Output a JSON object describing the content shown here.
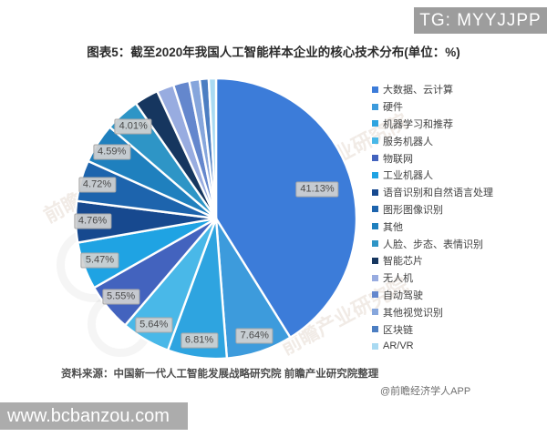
{
  "page": {
    "badge": "TG: MYYJJPP",
    "title": "图表5：截至2020年我国人工智能样本企业的核心技术分布(单位：%)",
    "source_note": "资料来源：中国新一代人工智能发展战略研究院 前瞻产业研究院整理",
    "attribution": "@前瞻经济学人APP",
    "watermark_url": "www.bcbanzou.com",
    "background_watermark": "前瞻产业研究院"
  },
  "chart_data": {
    "type": "pie",
    "title": "截至2020年我国人工智能样本企业的核心技术分布",
    "unit": "%",
    "start_angle_deg": 0,
    "direction": "clockwise",
    "legend_position": "right",
    "separator_color": "#ffffff",
    "label_box_bg": "#d1d1d1",
    "label_text_color": "#4a4a4a",
    "series": [
      {
        "label": "大数据、云计算",
        "value": 41.13,
        "value_label": "41.13%",
        "color": "#3c7cd9",
        "estimated": false
      },
      {
        "label": "硬件",
        "value": 7.64,
        "value_label": "7.64%",
        "color": "#3d9bdc",
        "estimated": false
      },
      {
        "label": "机器学习和推荐",
        "value": 6.81,
        "value_label": "6.81%",
        "color": "#2ea4e0",
        "estimated": false
      },
      {
        "label": "服务机器人",
        "value": 5.64,
        "value_label": "5.64%",
        "color": "#49b8e8",
        "estimated": false
      },
      {
        "label": "物联网",
        "value": 5.55,
        "value_label": "5.55%",
        "color": "#4363be",
        "estimated": false
      },
      {
        "label": "工业机器人",
        "value": 5.47,
        "value_label": "5.47%",
        "color": "#1fa3e3",
        "estimated": false
      },
      {
        "label": "语音识别和自然语言处理",
        "value": 4.76,
        "value_label": "4.76%",
        "color": "#17498f",
        "estimated": false
      },
      {
        "label": "图形图像识别",
        "value": 4.72,
        "value_label": "4.72%",
        "color": "#1d64ad",
        "estimated": false
      },
      {
        "label": "其他",
        "value": 4.59,
        "value_label": "4.59%",
        "color": "#1f80be",
        "estimated": false
      },
      {
        "label": "人脸、步态、表情识别",
        "value": 4.01,
        "value_label": "4.01%",
        "color": "#2e95c6",
        "estimated": false
      },
      {
        "label": "智能芯片",
        "value": 2.79,
        "value_label": null,
        "color": "#16365f",
        "estimated": true
      },
      {
        "label": "无人机",
        "value": 1.97,
        "value_label": null,
        "color": "#98ace0",
        "estimated": true
      },
      {
        "label": "自动驾驶",
        "value": 1.85,
        "value_label": null,
        "color": "#6487cd",
        "estimated": true
      },
      {
        "label": "其他视觉识别",
        "value": 1.21,
        "value_label": null,
        "color": "#86a6dc",
        "estimated": true
      },
      {
        "label": "区块链",
        "value": 1.02,
        "value_label": null,
        "color": "#4c7ec2",
        "estimated": true
      },
      {
        "label": "AR/VR",
        "value": 0.84,
        "value_label": null,
        "color": "#a9daf2",
        "estimated": true
      }
    ]
  }
}
